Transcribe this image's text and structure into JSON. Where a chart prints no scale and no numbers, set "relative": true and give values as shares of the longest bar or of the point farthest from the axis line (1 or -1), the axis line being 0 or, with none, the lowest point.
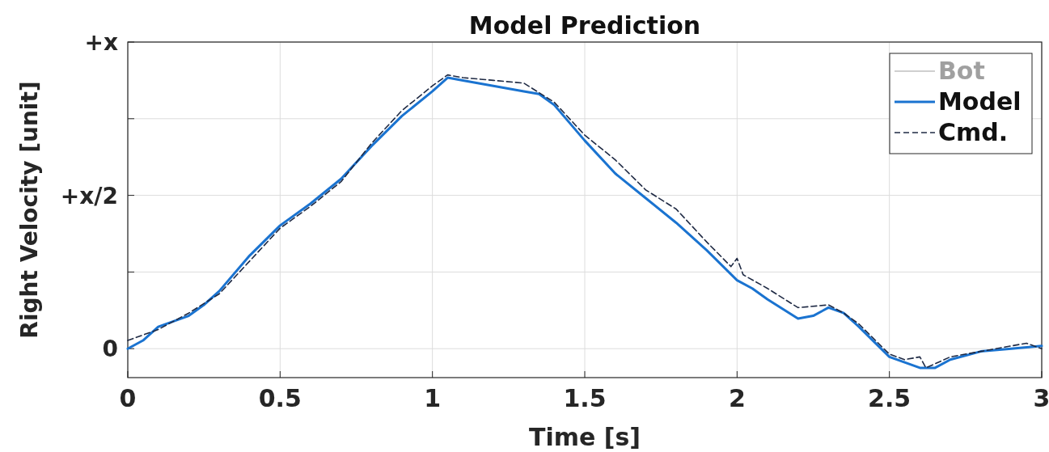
{
  "chart_data": {
    "type": "line",
    "title": "Model Prediction",
    "xlabel": "Time [s]",
    "ylabel": "Right Velocity [unit]",
    "xlim": [
      0,
      3
    ],
    "xticks": [
      0,
      0.5,
      1,
      1.5,
      2,
      2.5,
      3
    ],
    "relative": true,
    "annotations": [
      "0",
      "+x/2",
      "+x"
    ],
    "grid": true,
    "legend": "top right",
    "series": [
      {
        "name": "Bot",
        "color": "#a0a0a0",
        "line_style": "solid"
      },
      {
        "name": "Model",
        "color": "#1a73d0",
        "line_style": "solid",
        "x": [
          0,
          0.05,
          0.1,
          0.2,
          0.25,
          0.3,
          0.4,
          0.5,
          0.6,
          0.7,
          0.8,
          0.9,
          1.0,
          1.05,
          1.1,
          1.2,
          1.3,
          1.35,
          1.4,
          1.5,
          1.6,
          1.7,
          1.8,
          1.9,
          2.0,
          2.05,
          2.1,
          2.2,
          2.25,
          2.3,
          2.35,
          2.4,
          2.5,
          2.6,
          2.65,
          2.7,
          2.8,
          2.9,
          3.0
        ],
        "values": [
          0,
          0.03,
          0.08,
          0.12,
          0.16,
          0.21,
          0.34,
          0.45,
          0.53,
          0.62,
          0.74,
          0.85,
          0.94,
          0.99,
          0.98,
          0.96,
          0.94,
          0.93,
          0.89,
          0.76,
          0.64,
          0.55,
          0.46,
          0.36,
          0.25,
          0.22,
          0.18,
          0.11,
          0.12,
          0.15,
          0.13,
          0.08,
          -0.03,
          -0.07,
          -0.07,
          -0.04,
          -0.01,
          0,
          0.01
        ]
      },
      {
        "name": "Cmd.",
        "color": "#1f2a44",
        "line_style": "dashed",
        "x": [
          0,
          0.1,
          0.2,
          0.3,
          0.4,
          0.5,
          0.6,
          0.7,
          0.8,
          0.9,
          1.0,
          1.05,
          1.1,
          1.2,
          1.3,
          1.4,
          1.5,
          1.6,
          1.7,
          1.8,
          1.9,
          1.98,
          2.0,
          2.02,
          2.1,
          2.2,
          2.3,
          2.35,
          2.4,
          2.5,
          2.55,
          2.6,
          2.62,
          2.7,
          2.8,
          2.9,
          2.95,
          3.0
        ],
        "values": [
          0.03,
          0.07,
          0.13,
          0.2,
          0.32,
          0.44,
          0.52,
          0.61,
          0.75,
          0.87,
          0.96,
          1,
          0.99,
          0.98,
          0.97,
          0.9,
          0.78,
          0.69,
          0.58,
          0.51,
          0.39,
          0.3,
          0.33,
          0.27,
          0.22,
          0.15,
          0.16,
          0.13,
          0.09,
          -0.02,
          -0.04,
          -0.03,
          -0.07,
          -0.03,
          -0.01,
          0.01,
          0.02,
          0
        ]
      }
    ]
  }
}
